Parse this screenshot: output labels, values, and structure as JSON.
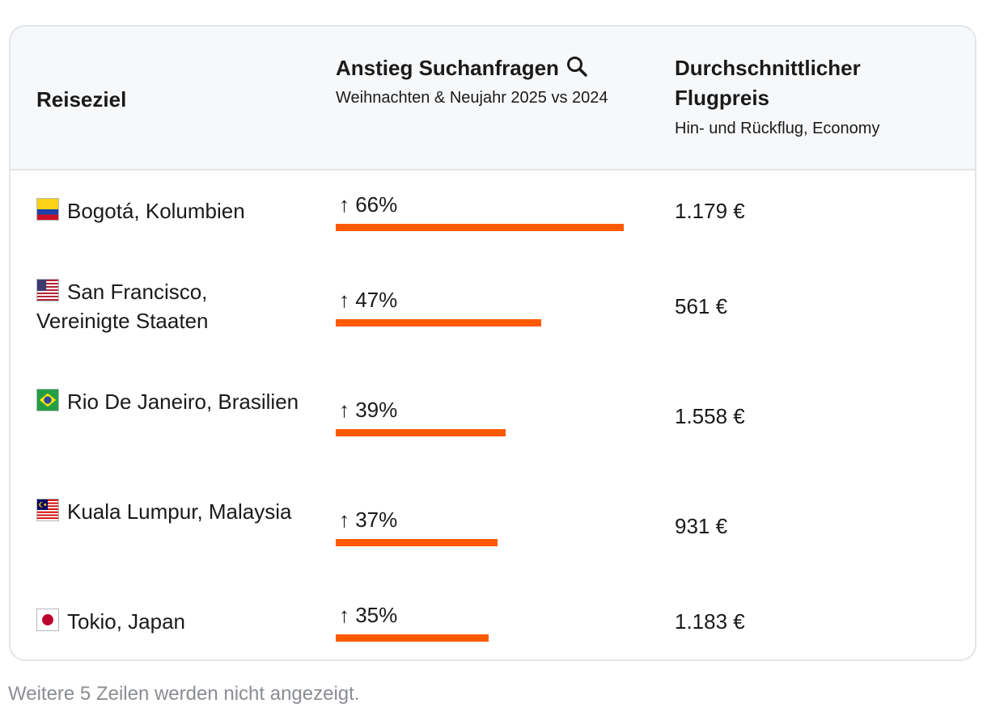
{
  "colors": {
    "accent_bar": "#ff5a00",
    "header_bg": "#f7f8fa",
    "border": "#e3e5e8",
    "footnote_text": "#8a8d91"
  },
  "table": {
    "headers": {
      "destination": "Reiseziel",
      "search_increase": "Anstieg Suchanfragen",
      "search_increase_icon": "search-icon",
      "search_increase_sub": "Weihnachten & Neujahr 2025 vs 2024",
      "avg_price": "Durchschnittlicher Flugpreis",
      "avg_price_sub": "Hin- und Rückflug, Economy"
    },
    "rows": [
      {
        "flag": "colombia-flag-icon",
        "destination": "Bogotá, Kolumbien",
        "increase_label": "↑ 66%",
        "increase_value": 66,
        "price": "1.179 €"
      },
      {
        "flag": "usa-flag-icon",
        "destination": "San Francisco, Vereinigte Staaten",
        "increase_label": "↑ 47%",
        "increase_value": 47,
        "price": "561 €"
      },
      {
        "flag": "brazil-flag-icon",
        "destination": "Rio De Janeiro, Brasilien",
        "increase_label": "↑ 39%",
        "increase_value": 39,
        "price": "1.558 €"
      },
      {
        "flag": "malaysia-flag-icon",
        "destination": "Kuala Lumpur, Malaysia",
        "increase_label": "↑ 37%",
        "increase_value": 37,
        "price": "931 €"
      },
      {
        "flag": "japan-flag-icon",
        "destination": "Tokio, Japan",
        "increase_label": "↑ 35%",
        "increase_value": 35,
        "price": "1.183 €"
      }
    ]
  },
  "footnote": "Weitere 5 Zeilen werden nicht angezeigt."
}
